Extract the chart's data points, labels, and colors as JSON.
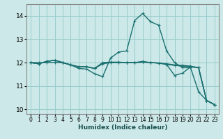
{
  "xlabel": "Humidex (Indice chaleur)",
  "background_color": "#cce8e8",
  "grid_color": "#99cccc",
  "line_color": "#1a7070",
  "xlim": [
    -0.5,
    23.5
  ],
  "ylim": [
    9.8,
    14.5
  ],
  "xticks": [
    0,
    1,
    2,
    3,
    4,
    5,
    6,
    7,
    8,
    9,
    10,
    11,
    12,
    13,
    14,
    15,
    16,
    17,
    18,
    19,
    20,
    21,
    22,
    23
  ],
  "yticks": [
    10,
    11,
    12,
    13,
    14
  ],
  "series": [
    [
      12.0,
      12.0,
      12.0,
      12.0,
      12.0,
      11.9,
      11.75,
      11.72,
      11.52,
      11.4,
      12.2,
      12.45,
      12.5,
      13.8,
      14.1,
      13.75,
      13.6,
      12.5,
      12.0,
      11.78,
      11.78,
      10.75,
      10.38,
      10.2
    ],
    [
      12.0,
      11.95,
      12.05,
      12.1,
      12.0,
      11.9,
      11.82,
      11.82,
      11.75,
      11.95,
      12.0,
      12.0,
      12.0,
      12.0,
      12.05,
      12.0,
      11.98,
      11.95,
      11.9,
      11.88,
      11.85,
      11.78,
      10.38,
      10.2
    ],
    [
      12.0,
      11.95,
      12.05,
      12.1,
      12.0,
      11.9,
      11.82,
      11.82,
      11.75,
      11.98,
      12.0,
      12.0,
      12.0,
      12.0,
      12.02,
      12.0,
      11.98,
      11.92,
      11.88,
      11.85,
      11.82,
      11.78,
      10.38,
      10.2
    ],
    [
      12.0,
      11.95,
      12.05,
      12.1,
      12.0,
      11.9,
      11.82,
      11.82,
      11.75,
      12.0,
      12.02,
      12.02,
      12.0,
      12.0,
      12.02,
      12.0,
      11.98,
      11.92,
      11.45,
      11.55,
      11.82,
      11.78,
      10.38,
      10.2
    ]
  ],
  "xlabel_fontsize": 6.5,
  "xlabel_color": "#1a5050",
  "tick_fontsize": 5.5,
  "ytick_fontsize": 6.5,
  "linewidth": 1.0,
  "markersize": 3,
  "markeredgewidth": 0.8
}
